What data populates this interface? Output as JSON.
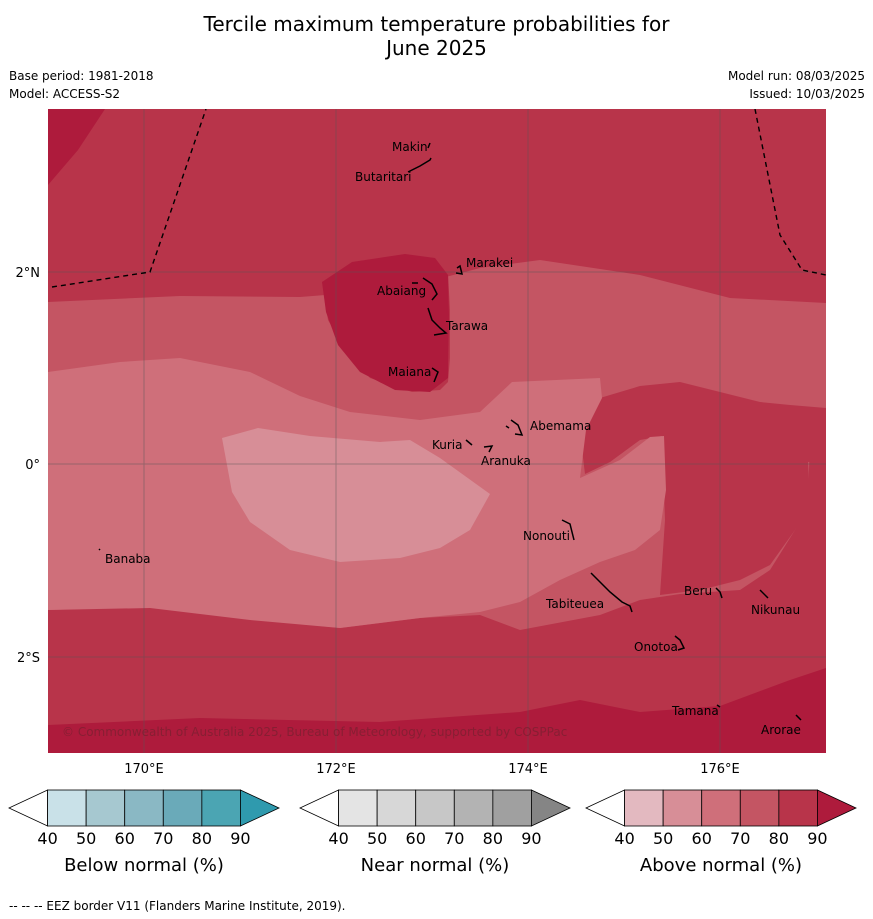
{
  "title_line1": "Tercile maximum temperature probabilities for",
  "title_line2": "June 2025",
  "base_period": "Base period: 1981-2018",
  "model": "Model: ACCESS-S2",
  "model_run": "Model run: 08/03/2025",
  "issued": "Issued: 10/03/2025",
  "copyright": "© Commonwealth of Australia 2025, Bureau of Meteorology, supported by COSPPac",
  "footer": "-- -- -- EEZ border V11 (Flanders Marine Institute, 2019).",
  "lat_labels": [
    "2°N",
    "0°",
    "2°S"
  ],
  "lon_labels": [
    "170°E",
    "172°E",
    "174°E",
    "176°E"
  ],
  "places": [
    "Makin",
    "Butaritari",
    "Marakei",
    "Abaiang",
    "Tarawa",
    "Maiana",
    "Abemama",
    "Kuria",
    "Aranuka",
    "Nonouti",
    "Banaba",
    "Beru",
    "Nikunau",
    "Tabiteuea",
    "Onotoa",
    "Tamana",
    "Arorae"
  ],
  "colorbars": [
    {
      "label": "Below normal (%)",
      "ticks": [
        "40",
        "50",
        "60",
        "70",
        "80",
        "90"
      ],
      "colors": [
        "#ffffff",
        "#c9e1e8",
        "#a6c8d0",
        "#8ab8c4",
        "#6aaab9",
        "#4ba5b3",
        "#2f9aae"
      ]
    },
    {
      "label": "Near normal (%)",
      "ticks": [
        "40",
        "50",
        "60",
        "70",
        "80",
        "90"
      ],
      "colors": [
        "#ffffff",
        "#e4e4e4",
        "#d7d7d7",
        "#c7c7c7",
        "#b3b3b3",
        "#a0a0a0",
        "#858585"
      ]
    },
    {
      "label": "Above normal (%)",
      "ticks": [
        "40",
        "50",
        "60",
        "70",
        "80",
        "90"
      ],
      "colors": [
        "#ffffff",
        "#e3b9c0",
        "#d78e97",
        "#cf6f7a",
        "#c45563",
        "#b8344a",
        "#ae1b3c"
      ]
    }
  ]
}
